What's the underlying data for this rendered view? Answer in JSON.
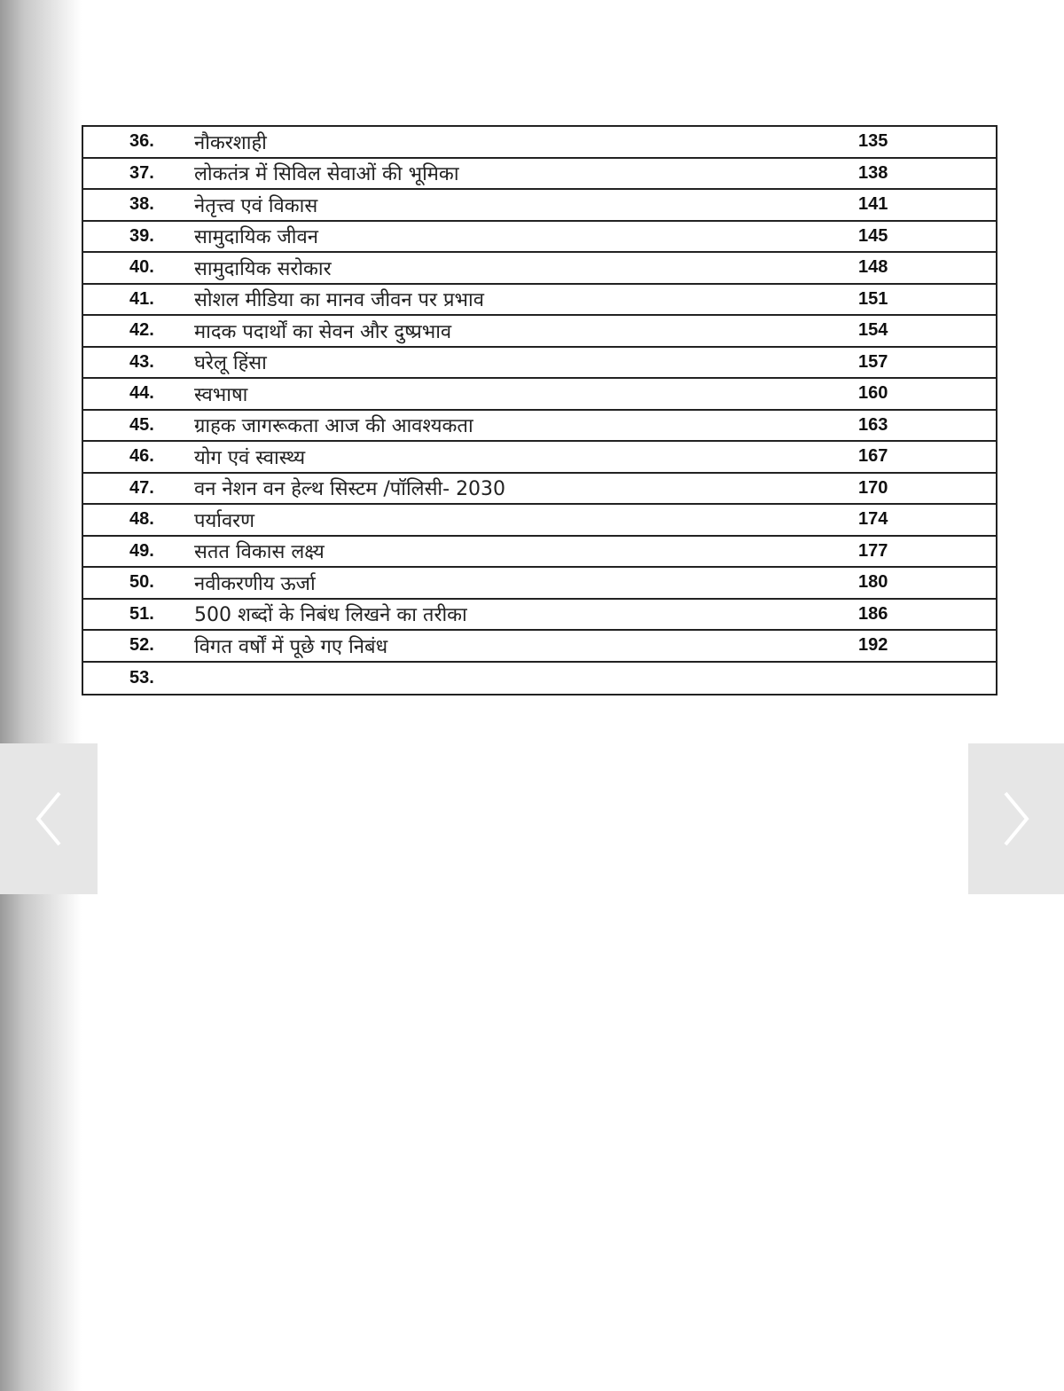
{
  "toc": [
    {
      "num": "36.",
      "title": "नौकरशाही",
      "page": "135"
    },
    {
      "num": "37.",
      "title": "लोकतंत्र में सिविल सेवाओं की भूमिका",
      "page": "138"
    },
    {
      "num": "38.",
      "title": "नेतृत्त्व एवं विकास",
      "page": "141"
    },
    {
      "num": "39.",
      "title": "सामुदायिक जीवन",
      "page": "145"
    },
    {
      "num": "40.",
      "title": "सामुदायिक सरोकार",
      "page": "148"
    },
    {
      "num": "41.",
      "title": "सोशल मीडिया का मानव जीवन पर प्रभाव",
      "page": "151"
    },
    {
      "num": "42.",
      "title": "मादक पदार्थों का सेवन और दुष्प्रभाव",
      "page": "154"
    },
    {
      "num": "43.",
      "title": "घरेलू हिंसा",
      "page": "157"
    },
    {
      "num": "44.",
      "title": "स्वभाषा",
      "page": "160"
    },
    {
      "num": "45.",
      "title": "ग्राहक जागरूकता आज की आवश्यकता",
      "page": "163"
    },
    {
      "num": "46.",
      "title": "योग एवं स्वास्थ्य",
      "page": "167"
    },
    {
      "num": "47.",
      "title": "वन नेशन वन हेल्थ सिस्टम /पॉलिसी- 2030",
      "page": "170"
    },
    {
      "num": "48.",
      "title": "पर्यावरण",
      "page": "174"
    },
    {
      "num": "49.",
      "title": "सतत विकास लक्ष्य",
      "page": "177"
    },
    {
      "num": "50.",
      "title": "नवीकरणीय ऊर्जा",
      "page": "180"
    },
    {
      "num": "51.",
      "title": "500 शब्दों के निबंध लिखने का तरीका",
      "page": "186"
    },
    {
      "num": "52.",
      "title": "विगत वर्षों में पूछे गए निबंध",
      "page": "192"
    },
    {
      "num": "53.",
      "title": "",
      "page": ""
    }
  ],
  "nav": {
    "prev_icon": "chevron-left-icon",
    "next_icon": "chevron-right-icon"
  }
}
